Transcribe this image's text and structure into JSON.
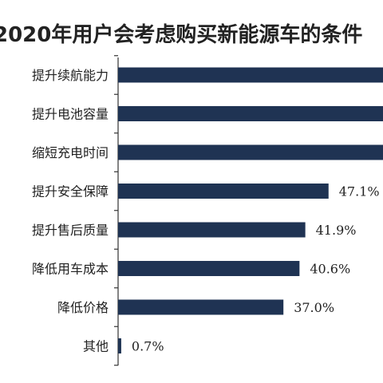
{
  "chart_data": {
    "type": "bar",
    "orientation": "horizontal",
    "title": "2020年用户会考虑购买新能源车的条件",
    "categories": [
      "提升续航能力",
      "提升电池容量",
      "缩短充电时间",
      "提升安全保障",
      "提升售后质量",
      "降低用车成本",
      "降低价格",
      "其他"
    ],
    "values": [
      null,
      null,
      null,
      47.1,
      41.9,
      40.6,
      37.0,
      0.7
    ],
    "value_labels": [
      "",
      "",
      "",
      "47.1%",
      "41.9%",
      "40.6%",
      "37.0%",
      "0.7%"
    ],
    "bar_color": "#1f3353",
    "xlim": [
      0,
      100
    ],
    "grid": false,
    "legend": "none"
  }
}
